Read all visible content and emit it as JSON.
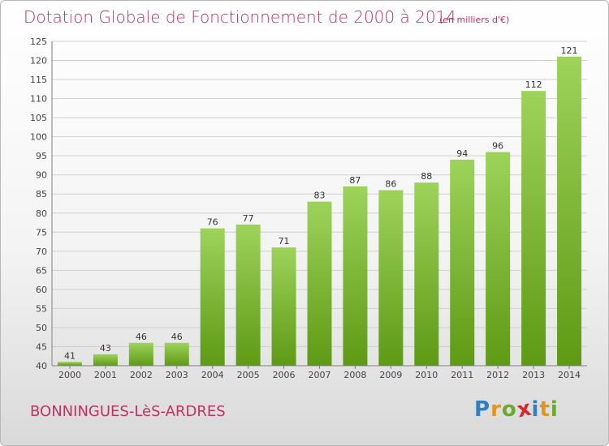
{
  "header": {
    "title": "Dotation Globale de Fonctionnement de 2000 à 2014",
    "subtitle": "(en milliers d'€)"
  },
  "footer": {
    "commune": "BONNINGUES-LèS-ARDRES",
    "logo_letters": [
      {
        "ch": "P",
        "color": "#2f7fc1"
      },
      {
        "ch": "r",
        "color": "#e0961c"
      },
      {
        "ch": "o",
        "color": "#6aa82e"
      },
      {
        "ch": "x",
        "color": "#d8262e"
      },
      {
        "ch": "i",
        "color": "#2f7fc1"
      },
      {
        "ch": "t",
        "color": "#e0961c"
      },
      {
        "ch": "i",
        "color": "#6aa82e"
      }
    ]
  },
  "colors": {
    "title": "#c0325f",
    "bar_top": "#9dd35a",
    "bar_bottom": "#5e9a14",
    "grid": "#d0d0d0",
    "axis": "#808080"
  },
  "chart_data": {
    "type": "bar",
    "title": "Dotation Globale de Fonctionnement de 2000 à 2014",
    "subtitle": "(en milliers d'€)",
    "categories": [
      "2000",
      "2001",
      "2002",
      "2003",
      "2004",
      "2005",
      "2006",
      "2007",
      "2008",
      "2009",
      "2010",
      "2011",
      "2012",
      "2013",
      "2014"
    ],
    "values": [
      41,
      43,
      46,
      46,
      76,
      77,
      71,
      83,
      87,
      86,
      88,
      94,
      96,
      112,
      121
    ],
    "ylim": [
      40,
      125
    ],
    "yticks": [
      40,
      45,
      50,
      55,
      60,
      65,
      70,
      75,
      80,
      85,
      90,
      95,
      100,
      105,
      110,
      115,
      120,
      125
    ],
    "grid": true,
    "data_labels": true
  }
}
